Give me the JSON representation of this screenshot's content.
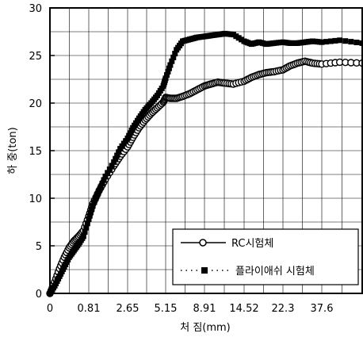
{
  "chart_data": {
    "type": "line",
    "title": "",
    "xlabel": "처 짐(mm)",
    "ylabel": "하 중(ton)",
    "x_tick_labels": [
      "0",
      "0.81",
      "2.65",
      "5.15",
      "8.91",
      "14.52",
      "22.3",
      "37.6"
    ],
    "ylim": [
      0,
      30
    ],
    "y_ticks": [
      0,
      5,
      10,
      15,
      20,
      25,
      30
    ],
    "grid": true,
    "legend_position": "bottom-right",
    "series": [
      {
        "name": "RC시험체",
        "line_style": "solid",
        "marker": "open-circle",
        "x": [
          0,
          0.1,
          0.2,
          0.3,
          0.4,
          0.5,
          0.6,
          0.7,
          0.81,
          1.0,
          1.3,
          1.6,
          2.0,
          2.3,
          2.65,
          3.0,
          3.4,
          3.8,
          4.2,
          4.6,
          5.0,
          5.15,
          5.6,
          6.2,
          6.8,
          7.5,
          8.2,
          8.91,
          9.8,
          10.8,
          11.8,
          13.0,
          14.52,
          16.0,
          17.5,
          19.0,
          20.5,
          22.3,
          25.0,
          28.0,
          31.0,
          34.0,
          37.6,
          40.0,
          43.0
        ],
        "y": [
          0,
          1.2,
          2.6,
          3.8,
          4.8,
          5.5,
          6.0,
          6.6,
          8.1,
          9.4,
          10.8,
          12.0,
          13.4,
          14.4,
          15.4,
          16.4,
          17.4,
          18.2,
          18.9,
          19.5,
          20.1,
          20.6,
          20.5,
          20.5,
          20.7,
          21.0,
          21.4,
          21.8,
          22.0,
          22.2,
          22.1,
          22.0,
          22.3,
          22.7,
          23.0,
          23.2,
          23.3,
          23.5,
          23.9,
          24.2,
          24.4,
          24.2,
          24.1,
          24.3,
          24.2
        ]
      },
      {
        "name": "플라이애쉬 시험체",
        "line_style": "dotted",
        "marker": "filled-square",
        "x": [
          0,
          0.1,
          0.2,
          0.3,
          0.4,
          0.5,
          0.6,
          0.7,
          0.81,
          1.0,
          1.3,
          1.6,
          2.0,
          2.3,
          2.65,
          3.0,
          3.4,
          3.8,
          4.2,
          4.6,
          5.0,
          5.15,
          5.6,
          6.2,
          6.8,
          7.5,
          8.2,
          8.91,
          9.8,
          10.8,
          11.8,
          13.0,
          14.52,
          16.0,
          17.5,
          19.0,
          20.5,
          22.3,
          25.0,
          28.0,
          31.0,
          34.0,
          37.6,
          40.0,
          43.0
        ],
        "y": [
          0,
          0.8,
          1.8,
          2.8,
          3.8,
          4.5,
          5.2,
          6.0,
          7.8,
          9.2,
          10.8,
          12.3,
          13.8,
          15.2,
          16.3,
          17.4,
          18.4,
          19.3,
          20.0,
          20.8,
          21.8,
          22.6,
          24.0,
          25.6,
          26.5,
          26.7,
          26.9,
          27.0,
          27.1,
          27.2,
          27.3,
          27.2,
          26.5,
          26.2,
          26.4,
          26.2,
          26.3,
          26.4,
          26.3,
          26.3,
          26.4,
          26.5,
          26.4,
          26.6,
          26.3
        ]
      }
    ]
  }
}
